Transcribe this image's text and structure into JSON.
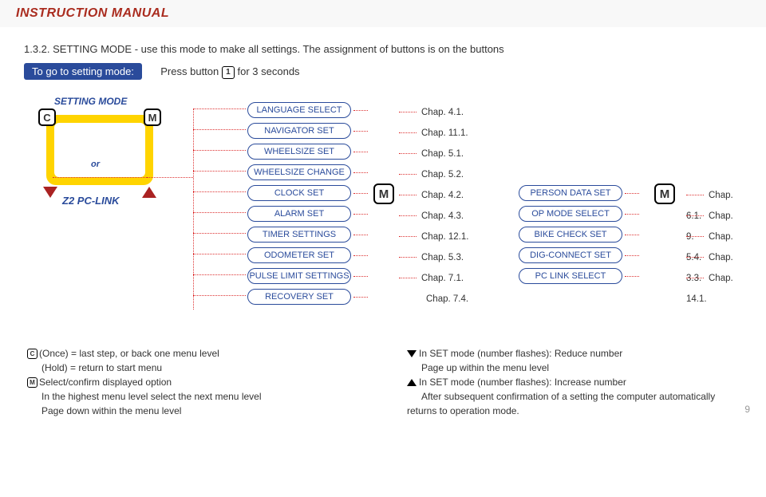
{
  "header": {
    "title": "INSTRUCTION MANUAL"
  },
  "intro": {
    "line": "1.3.2. SETTING MODE - use this mode to make all settings. The assignment of buttons is on the buttons"
  },
  "goto": {
    "label": "To go to setting mode:",
    "press_pre": "Press button",
    "press_key": "1",
    "press_post": "for 3 seconds"
  },
  "device": {
    "mode_label": "SETTING MODE",
    "c": "C",
    "m": "M",
    "or": "or",
    "zlink": "Z2 PC-LINK"
  },
  "menu1": [
    {
      "label": "LANGUAGE SELECT",
      "chap": "Chap. 4.1."
    },
    {
      "label": "NAVIGATOR SET",
      "chap": "Chap. 11.1."
    },
    {
      "label": "WHEELSIZE SET",
      "chap": "Chap. 5.1."
    },
    {
      "label": "WHEELSIZE CHANGE",
      "chap": "Chap. 5.2."
    },
    {
      "label": "CLOCK SET",
      "chap": "Chap. 4.2."
    },
    {
      "label": "ALARM SET",
      "chap": "Chap. 4.3."
    },
    {
      "label": "TIMER SETTINGS",
      "chap": "Chap. 12.1."
    },
    {
      "label": "ODOMETER SET",
      "chap": "Chap. 5.3."
    },
    {
      "label": "PULSE LIMIT SETTINGS",
      "chap": "Chap. 7.1."
    },
    {
      "label": "RECOVERY SET",
      "chap": "Chap. 7.4."
    }
  ],
  "menu2": [
    {
      "label": "PERSON DATA SET",
      "chap": "Chap. 6.1."
    },
    {
      "label": "OP MODE SELECT",
      "chap": "Chap. 9."
    },
    {
      "label": "BIKE CHECK SET",
      "chap": "Chap. 5.4."
    },
    {
      "label": "DIG-CONNECT SET",
      "chap": "Chap. 3.3."
    },
    {
      "label": "PC LINK SELECT",
      "chap": "Chap. 14.1."
    }
  ],
  "m_badge": "M",
  "notes": {
    "left": [
      {
        "icon": "C",
        "shape": "sq",
        "text": "(Once) = last step, or back one menu level"
      },
      {
        "icon": "",
        "shape": "",
        "text": "(Hold) = return to start menu"
      },
      {
        "icon": "M",
        "shape": "sq",
        "text": "Select/confirm displayed option"
      },
      {
        "icon": "",
        "shape": "",
        "text": "In the highest menu level select the next menu level"
      },
      {
        "icon": "",
        "shape": "",
        "text": "Page down within the menu level"
      }
    ],
    "right": [
      {
        "icon": "down",
        "shape": "tri",
        "text": "In SET mode (number flashes): Reduce number"
      },
      {
        "icon": "",
        "shape": "",
        "text": "Page up within the menu level"
      },
      {
        "icon": "up",
        "shape": "tri",
        "text": "In SET mode (number flashes): Increase number"
      },
      {
        "icon": "",
        "shape": "",
        "text": "After subsequent confirmation of a setting the computer automatically returns to operation mode."
      }
    ]
  },
  "pagenum": "9",
  "colors": {
    "accent_blue": "#2a4b9b",
    "accent_red": "#a22",
    "dotted": "#d33",
    "yellow": "#ffd400",
    "header_red": "#aa2c1f"
  }
}
